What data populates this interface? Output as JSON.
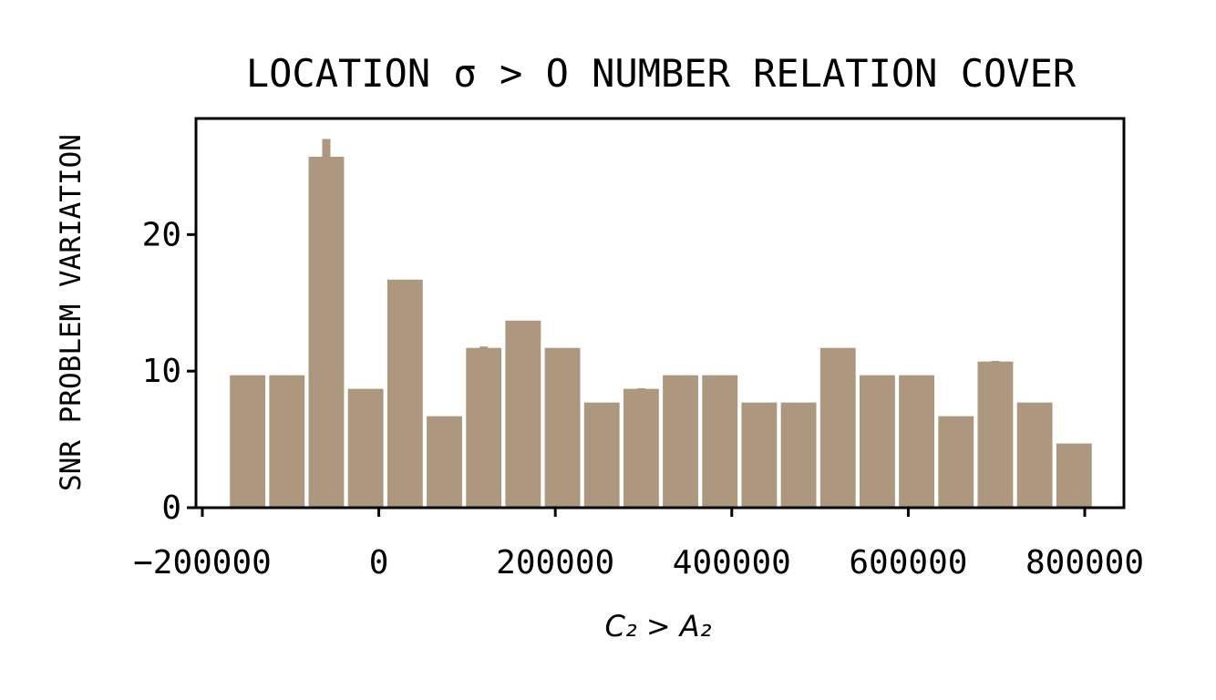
{
  "chart_data": {
    "type": "histogram",
    "title": "LOCATION σ > O  NUMBER RELATION COVER",
    "x_label": "C₂ > A₂",
    "y_label": "SNR PROBLEM VARIATION",
    "bins": [
      -171000,
      -126400,
      -81800,
      -37200,
      7400,
      52000,
      96600,
      141200,
      185800,
      230400,
      275000,
      319600,
      364200,
      408800,
      453400,
      498000,
      542600,
      587200,
      631800,
      676400,
      721000,
      765600,
      810200
    ],
    "values": [
      9.7,
      9.7,
      25.7,
      8.7,
      16.7,
      6.7,
      11.7,
      13.7,
      11.7,
      7.7,
      8.7,
      9.7,
      9.7,
      7.7,
      7.7,
      11.7,
      9.7,
      9.7,
      6.7,
      10.7,
      7.7,
      4.7
    ],
    "errors": [
      0,
      0,
      1.3,
      0,
      0,
      0,
      0.1,
      0,
      0,
      0,
      0.05,
      0,
      0,
      0,
      0,
      0,
      0,
      0,
      0,
      0.05,
      0,
      0
    ],
    "color": "#ad977f",
    "xlim": [
      -207200,
      844400
    ],
    "ylim": [
      0,
      28.5
    ],
    "xticks": [
      {
        "value": -200000,
        "label": "−200000"
      },
      0,
      200000,
      400000,
      600000,
      800000
    ],
    "yticks": [
      0,
      10,
      20
    ]
  }
}
